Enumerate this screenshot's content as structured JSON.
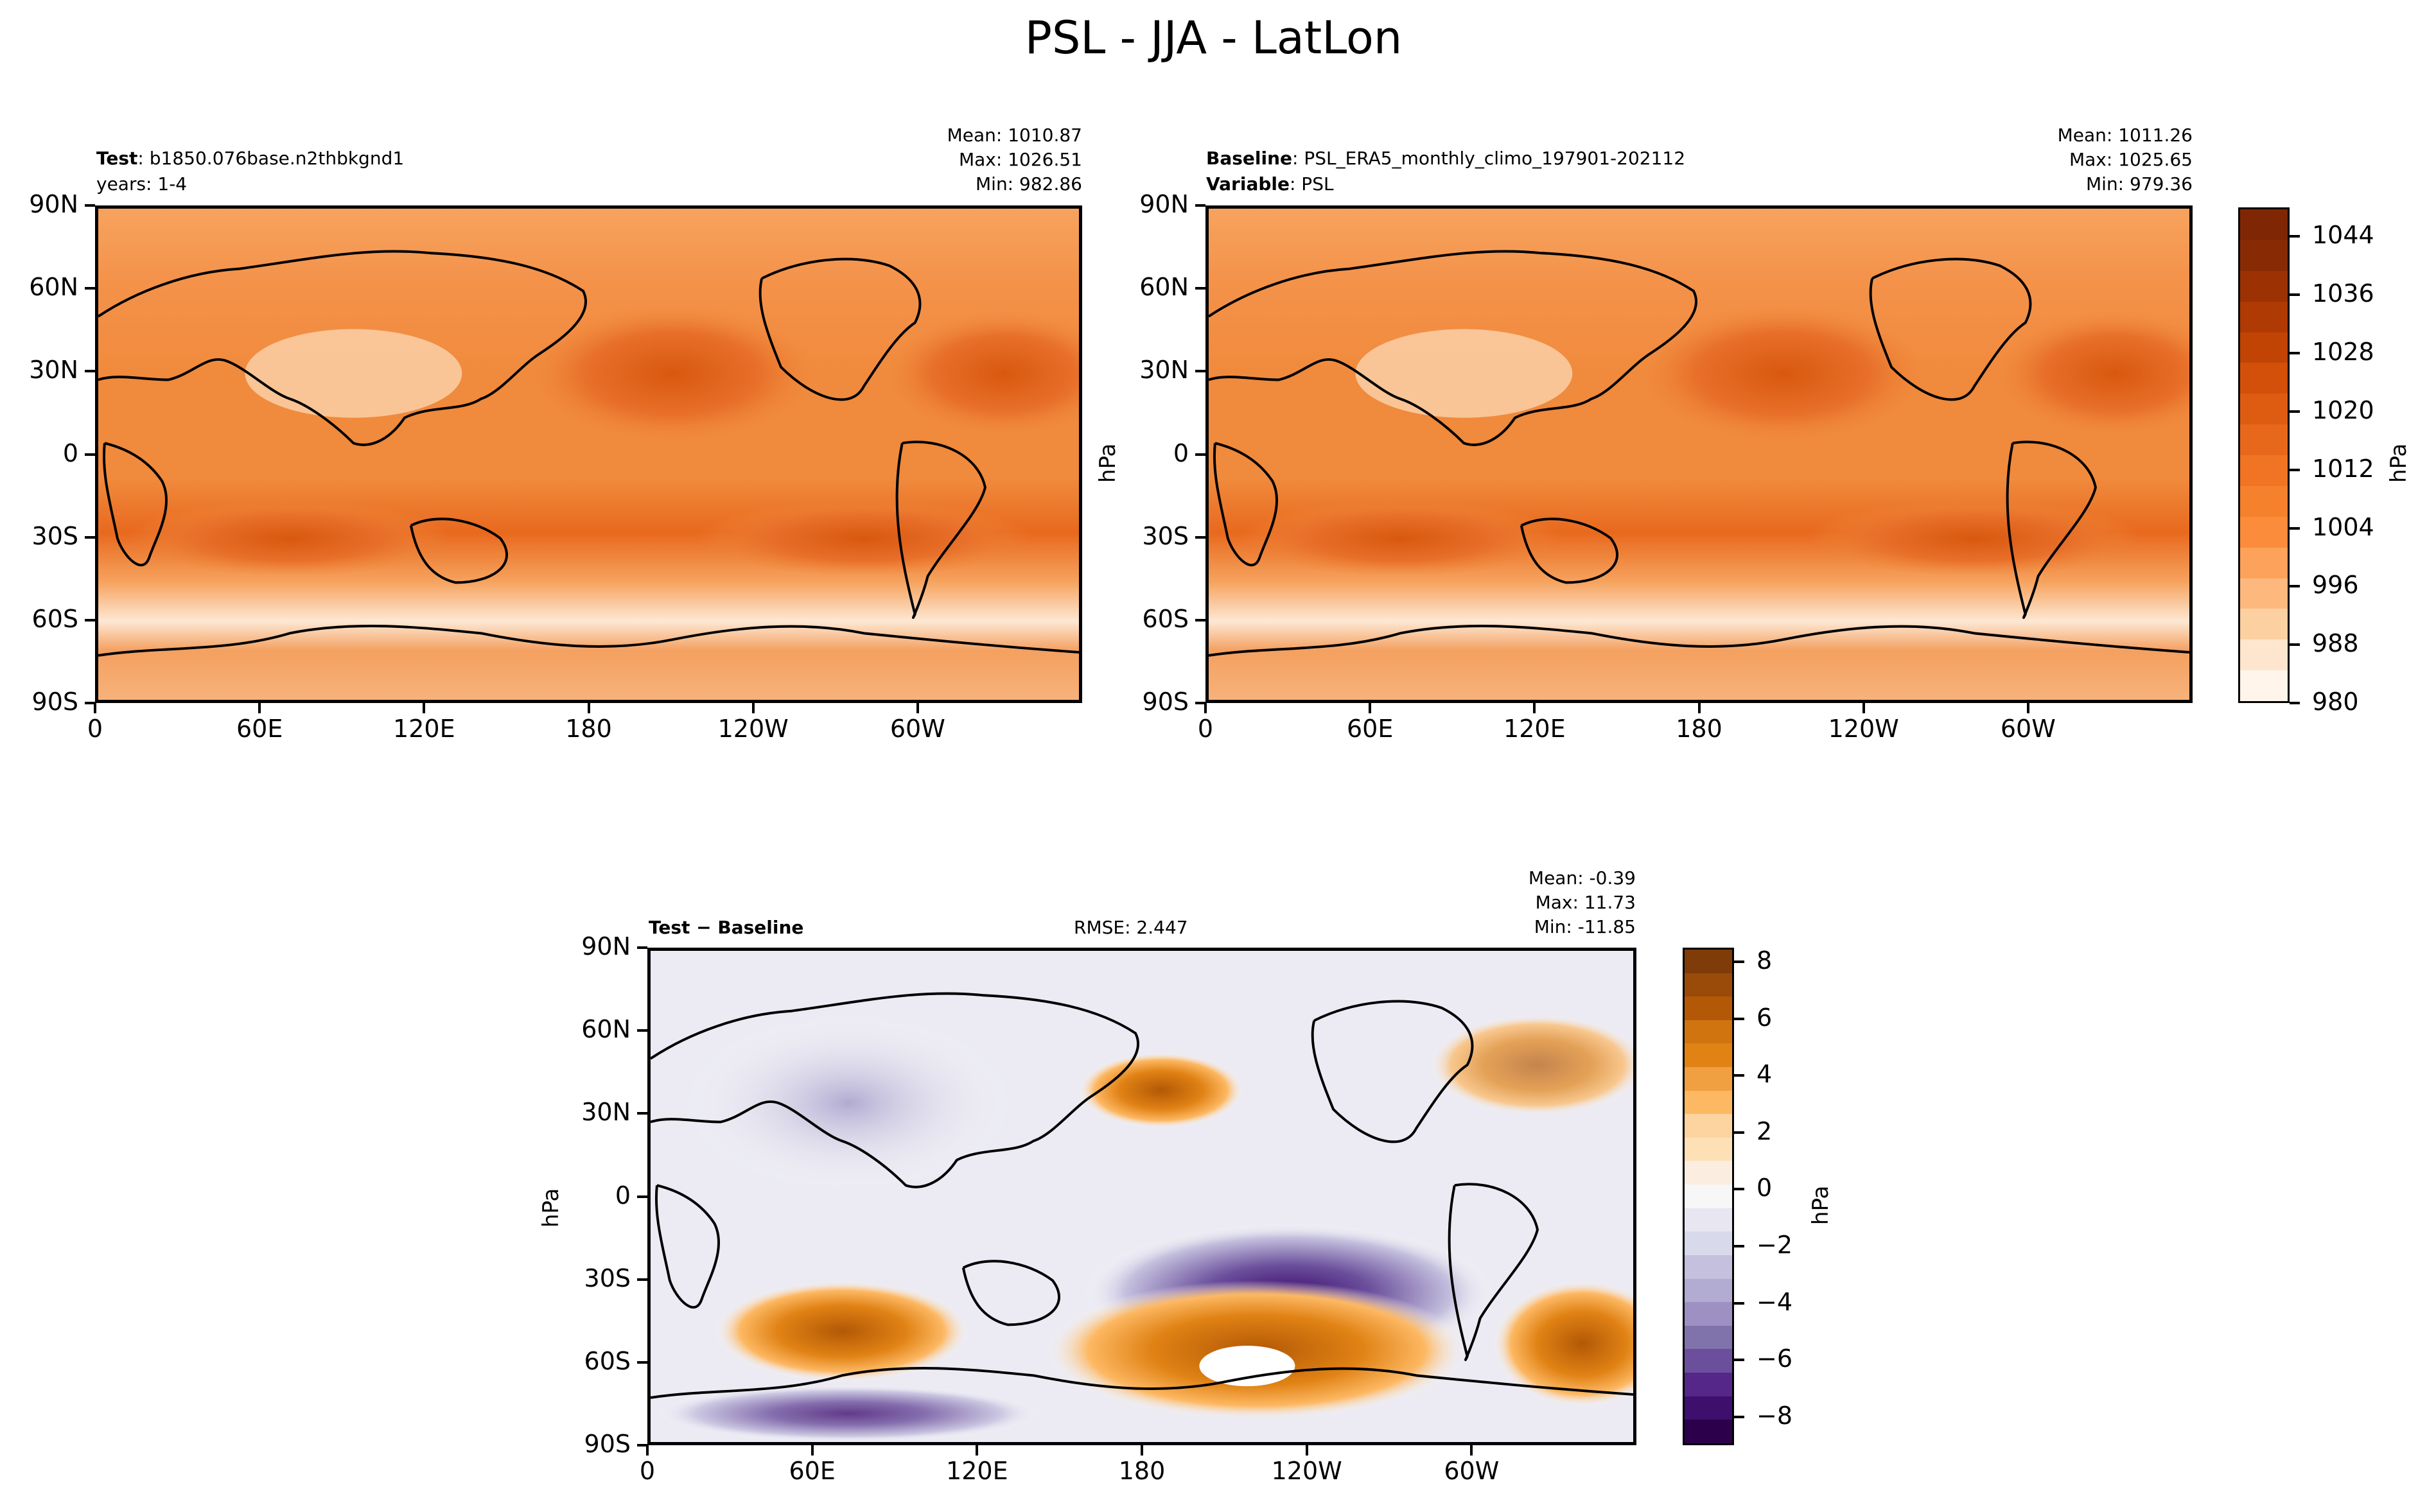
{
  "title": "PSL - JJA - LatLon",
  "panels": {
    "test": {
      "label_bold": "Test",
      "label_text": ": b1850.076base.n2thbkgnd1",
      "line2": "years: 1-4",
      "mean": "Mean: 1010.87",
      "max": "Max: 1026.51",
      "min": "Min: 982.86"
    },
    "baseline": {
      "label_bold": "Baseline",
      "label_text": ": PSL_ERA5_monthly_climo_197901-202112",
      "line2_bold": "Variable",
      "line2_text": ": PSL",
      "mean": "Mean: 1011.26",
      "max": "Max: 1025.65",
      "min": "Min: 979.36",
      "unit": "hPa"
    },
    "diff": {
      "label": "Test − Baseline",
      "rmse": "RMSE: 2.447",
      "mean": "Mean: -0.39",
      "max": "Max: 11.73",
      "min": "Min: -11.85",
      "unit": "hPa"
    }
  },
  "axes": {
    "lat_ticks": [
      "90N",
      "60N",
      "30N",
      "0",
      "30S",
      "60S",
      "90S"
    ],
    "lon_ticks": [
      "0",
      "60E",
      "120E",
      "180",
      "120W",
      "60W"
    ]
  },
  "colorbar_top": {
    "unit": "hPa",
    "ticks": [
      "1044",
      "1036",
      "1028",
      "1020",
      "1012",
      "1004",
      "996",
      "988",
      "980"
    ],
    "range": [
      980,
      1048
    ],
    "colors": [
      "#fff5eb",
      "#fee6ce",
      "#fdd0a2",
      "#fdb97d",
      "#fda25a",
      "#fa8c3b",
      "#f6812d",
      "#f07423",
      "#e8681b",
      "#de5c12",
      "#d25009",
      "#c24405",
      "#b03a03",
      "#9c3203",
      "#882b04",
      "#7f2704"
    ]
  },
  "colorbar_diff": {
    "unit": "hPa",
    "ticks": [
      "8",
      "6",
      "4",
      "2",
      "0",
      "−2",
      "−4",
      "−6",
      "−8"
    ],
    "range": [
      -9,
      8.5
    ],
    "colors_top_to_bottom": [
      "#7f3b08",
      "#9a4b0a",
      "#b35806",
      "#d0740f",
      "#e08214",
      "#f0a040",
      "#fdb863",
      "#fdd4a0",
      "#fee0b6",
      "#fbeee0",
      "#f7f7f7",
      "#e8e6f0",
      "#d8daeb",
      "#c4c0de",
      "#b2abd2",
      "#9e90c2",
      "#8073ac",
      "#6b4f9c",
      "#542788",
      "#3f0f6e",
      "#2d004b"
    ]
  }
}
